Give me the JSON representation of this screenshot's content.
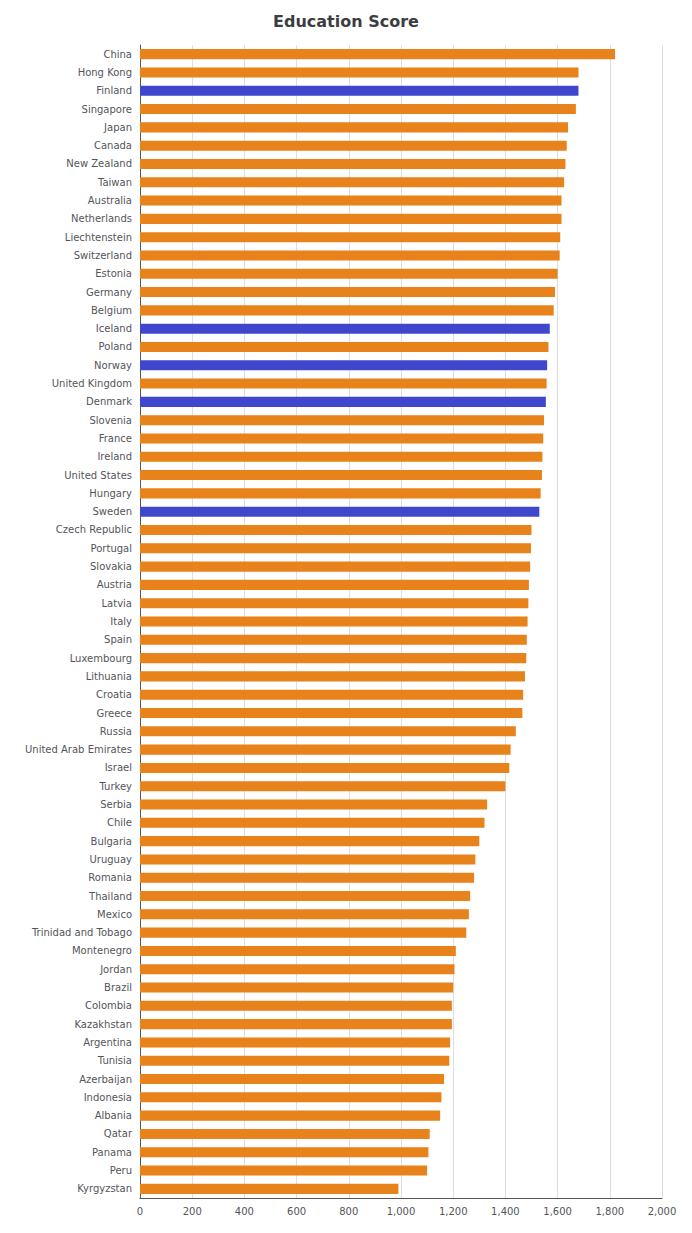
{
  "chart_data": {
    "type": "bar",
    "orientation": "horizontal",
    "title": "Education Score",
    "categories": [
      "China",
      "Hong Kong",
      "Finland",
      "Singapore",
      "Japan",
      "Canada",
      "New Zealand",
      "Taiwan",
      "Australia",
      "Netherlands",
      "Liechtenstein",
      "Switzerland",
      "Estonia",
      "Germany",
      "Belgium",
      "Iceland",
      "Poland",
      "Norway",
      "United Kingdom",
      "Denmark",
      "Slovenia",
      "France",
      "Ireland",
      "United States",
      "Hungary",
      "Sweden",
      "Czech Republic",
      "Portugal",
      "Slovakia",
      "Austria",
      "Latvia",
      "Italy",
      "Spain",
      "Luxembourg",
      "Lithuania",
      "Croatia",
      "Greece",
      "Russia",
      "United Arab Emirates",
      "Israel",
      "Turkey",
      "Serbia",
      "Chile",
      "Bulgaria",
      "Uruguay",
      "Romania",
      "Thailand",
      "Mexico",
      "Trinidad and Tobago",
      "Montenegro",
      "Jordan",
      "Brazil",
      "Colombia",
      "Kazakhstan",
      "Argentina",
      "Tunisia",
      "Azerbaijan",
      "Indonesia",
      "Albania",
      "Qatar",
      "Panama",
      "Peru",
      "Kyrgyzstan"
    ],
    "values": [
      1820,
      1680,
      1680,
      1670,
      1640,
      1635,
      1630,
      1625,
      1615,
      1615,
      1610,
      1608,
      1600,
      1590,
      1585,
      1570,
      1565,
      1560,
      1558,
      1555,
      1548,
      1545,
      1542,
      1540,
      1535,
      1530,
      1500,
      1498,
      1495,
      1490,
      1488,
      1485,
      1482,
      1480,
      1475,
      1468,
      1465,
      1440,
      1420,
      1415,
      1400,
      1330,
      1320,
      1300,
      1285,
      1280,
      1265,
      1260,
      1250,
      1210,
      1205,
      1200,
      1195,
      1195,
      1188,
      1185,
      1165,
      1155,
      1150,
      1110,
      1105,
      1100,
      990
    ],
    "colors": [
      "#E8821B",
      "#E8821B",
      "#3F48CC",
      "#E8821B",
      "#E8821B",
      "#E8821B",
      "#E8821B",
      "#E8821B",
      "#E8821B",
      "#E8821B",
      "#E8821B",
      "#E8821B",
      "#E8821B",
      "#E8821B",
      "#E8821B",
      "#3F48CC",
      "#E8821B",
      "#3F48CC",
      "#E8821B",
      "#3F48CC",
      "#E8821B",
      "#E8821B",
      "#E8821B",
      "#E8821B",
      "#E8821B",
      "#3F48CC",
      "#E8821B",
      "#E8821B",
      "#E8821B",
      "#E8821B",
      "#E8821B",
      "#E8821B",
      "#E8821B",
      "#E8821B",
      "#E8821B",
      "#E8821B",
      "#E8821B",
      "#E8821B",
      "#E8821B",
      "#E8821B",
      "#E8821B",
      "#E8821B",
      "#E8821B",
      "#E8821B",
      "#E8821B",
      "#E8821B",
      "#E8821B",
      "#E8821B",
      "#E8821B",
      "#E8821B",
      "#E8821B",
      "#E8821B",
      "#E8821B",
      "#E8821B",
      "#E8821B",
      "#E8821B",
      "#E8821B",
      "#E8821B",
      "#E8821B",
      "#E8821B",
      "#E8821B",
      "#E8821B",
      "#E8821B"
    ],
    "xlim": [
      0,
      2000
    ],
    "xticks": [
      0,
      200,
      400,
      600,
      800,
      1000,
      1200,
      1400,
      1600,
      1800,
      2000
    ],
    "grid": true
  }
}
